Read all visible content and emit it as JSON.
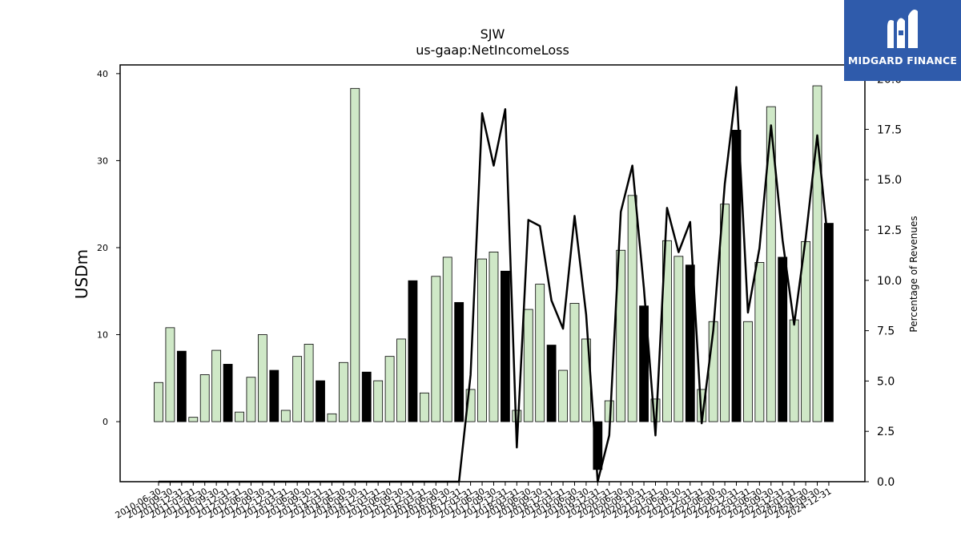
{
  "title": "SJW",
  "subtitle": "us-gaap:NetIncomeLoss",
  "logo": {
    "text": "MIDGARD FINANCE",
    "icon": "midgard-logo-icon",
    "background": "#2f5bab"
  },
  "chart_data": {
    "type": "bar",
    "ylabel": "USDm",
    "y2label": "Percentage of Revenues",
    "ylim": [
      -6.9,
      41
    ],
    "y2lim": [
      0,
      20.7
    ],
    "yticks": [
      0,
      10,
      20,
      30,
      40
    ],
    "y2ticks": [
      "0.0",
      "2.5",
      "5.0",
      "7.5",
      "10.0",
      "12.5",
      "15.0",
      "17.5",
      "20.0"
    ],
    "colors": {
      "quarter": "#cfe8c7",
      "annual": "#000000",
      "line": "#000000"
    },
    "categories": [
      "2010-06-30",
      "2010-09-30",
      "2010-12-31",
      "2011-03-31",
      "2011-06-30",
      "2011-09-30",
      "2011-12-31",
      "2012-03-31",
      "2012-06-30",
      "2012-09-30",
      "2012-12-31",
      "2013-03-31",
      "2013-06-30",
      "2013-09-30",
      "2013-12-31",
      "2014-03-31",
      "2014-06-30",
      "2014-09-30",
      "2014-12-31",
      "2015-03-31",
      "2015-06-30",
      "2015-09-30",
      "2015-12-31",
      "2016-03-31",
      "2016-06-30",
      "2016-09-30",
      "2016-12-31",
      "2017-03-31",
      "2017-06-30",
      "2017-09-30",
      "2017-12-31",
      "2018-03-31",
      "2018-06-30",
      "2018-09-30",
      "2018-12-31",
      "2019-03-31",
      "2019-06-30",
      "2019-09-30",
      "2019-12-31",
      "2020-03-31",
      "2020-06-30",
      "2020-09-30",
      "2020-12-31",
      "2021-03-31",
      "2021-06-30",
      "2021-09-30",
      "2021-12-31",
      "2022-03-31",
      "2022-06-30",
      "2022-09-30",
      "2022-12-31",
      "2023-03-31",
      "2023-06-30",
      "2023-09-30",
      "2023-12-31",
      "2024-03-31",
      "2024-06-30",
      "2024-09-30",
      "2024-12-31"
    ],
    "series": [
      {
        "kind": "bar",
        "values": [
          4.5,
          10.8,
          8.1,
          0.5,
          5.4,
          8.2,
          6.6,
          1.1,
          5.1,
          10.0,
          5.9,
          1.3,
          7.5,
          8.9,
          4.7,
          0.9,
          6.8,
          38.3,
          5.7,
          4.7,
          7.5,
          9.5,
          16.2,
          3.3,
          16.7,
          18.9,
          13.7,
          3.7,
          18.7,
          19.5,
          17.3,
          1.3,
          12.9,
          15.8,
          8.8,
          5.9,
          13.6,
          9.5,
          -5.5,
          2.4,
          19.7,
          26.0,
          13.3,
          2.6,
          20.8,
          19.0,
          18.0,
          3.7,
          11.5,
          25.0,
          33.5,
          11.5,
          18.3,
          36.2,
          18.9,
          11.7,
          20.7,
          38.6,
          22.8
        ],
        "annual": [
          false,
          false,
          true,
          false,
          false,
          false,
          true,
          false,
          false,
          false,
          true,
          false,
          false,
          false,
          true,
          false,
          false,
          false,
          true,
          false,
          false,
          false,
          true,
          false,
          false,
          false,
          true,
          false,
          false,
          false,
          true,
          false,
          false,
          false,
          true,
          false,
          false,
          false,
          true,
          false,
          false,
          false,
          true,
          false,
          false,
          false,
          true,
          false,
          false,
          false,
          true,
          false,
          false,
          false,
          true,
          false,
          false,
          false,
          true
        ]
      },
      {
        "kind": "line",
        "axis": "right",
        "values": [
          0,
          0,
          0,
          0,
          0,
          0,
          0,
          0,
          0,
          0,
          0,
          0,
          0,
          0,
          0,
          0,
          0,
          0,
          0,
          0,
          0,
          0,
          0,
          0,
          0,
          0,
          0,
          5.3,
          18.3,
          15.7,
          18.5,
          1.7,
          13.0,
          12.7,
          9.0,
          7.6,
          13.2,
          8.3,
          -1,
          2.3,
          13.4,
          15.7,
          9.6,
          2.3,
          13.6,
          11.4,
          12.9,
          2.9,
          7.5,
          14.8,
          19.6,
          8.4,
          11.6,
          17.7,
          12.0,
          7.8,
          12.1,
          17.2,
          11.5
        ]
      }
    ]
  }
}
